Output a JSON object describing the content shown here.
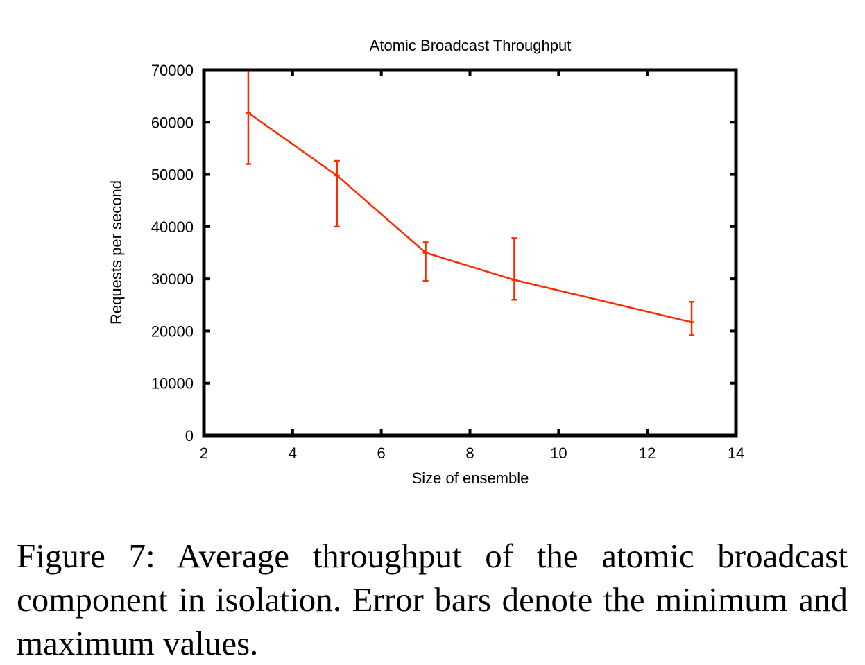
{
  "chart_data": {
    "type": "line",
    "title": "Atomic Broadcast Throughput",
    "xlabel": "Size of ensemble",
    "ylabel": "Requests per second",
    "xlim": [
      2,
      14
    ],
    "ylim": [
      0,
      70000
    ],
    "xticks": [
      2,
      4,
      6,
      8,
      10,
      12,
      14
    ],
    "yticks": [
      0,
      10000,
      20000,
      30000,
      40000,
      50000,
      60000,
      70000
    ],
    "grid": false,
    "legend": "none",
    "line_color": "#ff2a00",
    "series": [
      {
        "x": [
          3,
          5,
          7,
          9,
          13
        ],
        "y": [
          61800,
          49800,
          35000,
          29800,
          21700
        ],
        "ymin": [
          52000,
          40000,
          29600,
          26000,
          19200
        ],
        "ymax": [
          70000,
          52600,
          37000,
          37800,
          25600
        ]
      }
    ]
  },
  "caption": "Figure 7: Average throughput of the atomic broadcast component in isolation. Error bars denote the minimum and maximum values."
}
